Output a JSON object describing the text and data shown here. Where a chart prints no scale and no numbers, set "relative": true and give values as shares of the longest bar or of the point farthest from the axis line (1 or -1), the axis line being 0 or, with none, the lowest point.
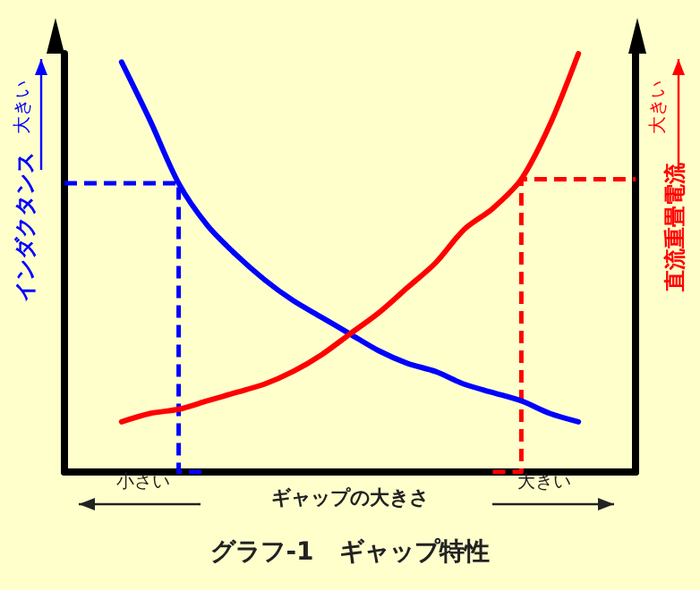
{
  "chart_data": {
    "type": "line",
    "relative": true,
    "title": "グラフ-1　ギャップ特性",
    "xlabel": "ギャップの大きさ",
    "ylabel": "インダクタンス",
    "y2label": "直流重畳電流",
    "annotations": [
      "大きい",
      "大きい",
      "小さい",
      "大きい"
    ],
    "categories": [
      null,
      null,
      null,
      null,
      null,
      null,
      null,
      null,
      null,
      null,
      null,
      null,
      null,
      null,
      null,
      null,
      null,
      null,
      null,
      null,
      null
    ],
    "grid": false,
    "marker": "none",
    "series": [
      {
        "color": "#0000ff",
        "values": [
          null,
          null,
          0.98,
          0.84,
          0.69,
          0.59,
          0.52,
          0.46,
          0.41,
          0.37,
          0.33,
          0.29,
          0.26,
          0.24,
          0.21,
          0.19,
          0.17,
          0.14,
          0.12,
          null,
          null
        ]
      },
      {
        "color": "#ff0000",
        "values": [
          null,
          null,
          0.12,
          0.14,
          0.15,
          0.17,
          0.19,
          0.21,
          0.24,
          0.28,
          0.33,
          0.38,
          0.44,
          0.5,
          0.58,
          0.63,
          0.7,
          0.83,
          1,
          null,
          null
        ]
      },
      {
        "type": "step",
        "color": "#0000ff",
        "line_style": "dashed",
        "values": [
          0.69,
          0.69,
          0.69,
          0.69,
          0.69,
          0,
          null,
          null,
          null,
          null,
          null,
          null,
          null,
          null,
          null,
          null,
          null,
          null,
          null,
          null,
          null
        ]
      },
      {
        "type": "step",
        "color": "#ff0000",
        "line_style": "dashed",
        "values": [
          null,
          null,
          null,
          null,
          null,
          null,
          null,
          null,
          null,
          null,
          null,
          null,
          null,
          null,
          null,
          0,
          0.7,
          0.7,
          0.7,
          0.7,
          0.7
        ]
      }
    ]
  }
}
